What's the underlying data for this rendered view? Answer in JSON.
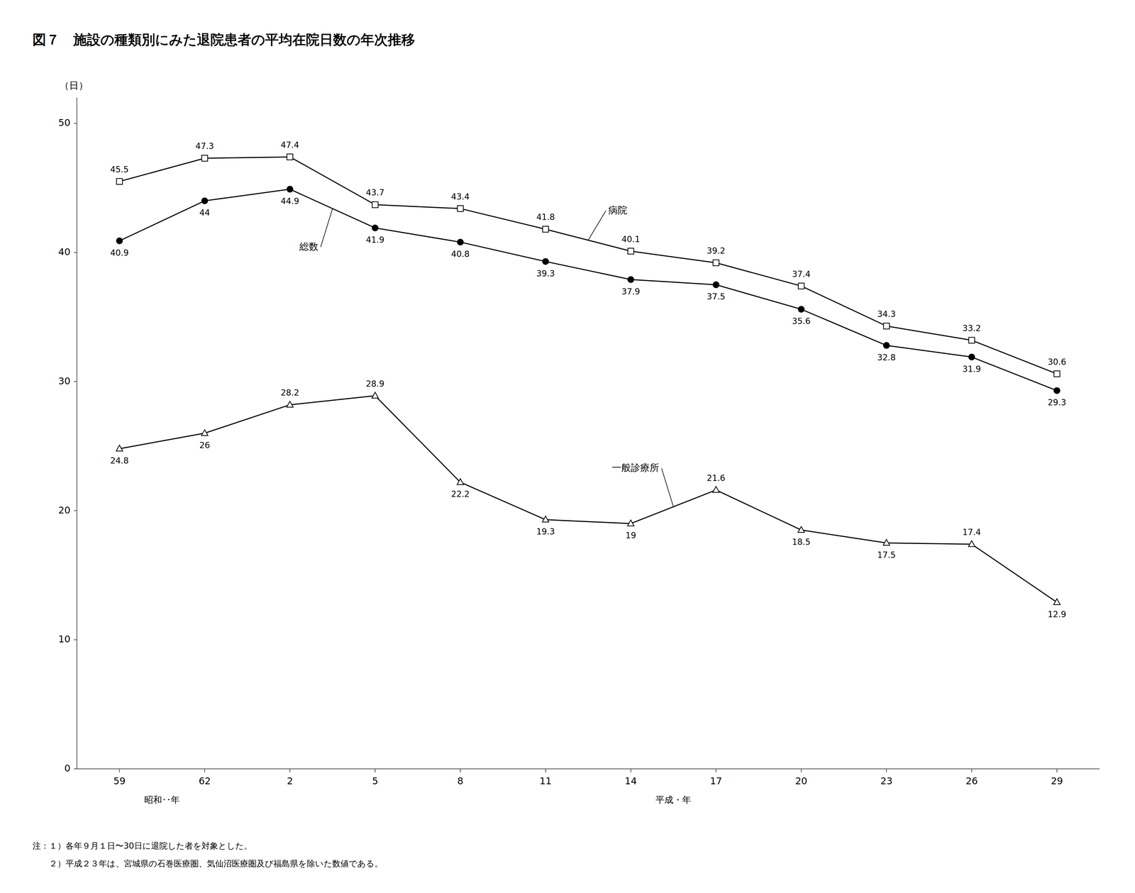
{
  "chart_data": {
    "type": "line",
    "title": "図７　施設の種類別にみた退院患者の平均在院日数の年次推移",
    "ylabel": "（日）",
    "categories": [
      "59",
      "62",
      "2",
      "5",
      "8",
      "11",
      "14",
      "17",
      "20",
      "23",
      "26",
      "29"
    ],
    "x_group_labels": [
      {
        "label": "昭和･･年",
        "from": "59",
        "to": "62"
      },
      {
        "label": "平成・年",
        "from": "2",
        "to": "29"
      }
    ],
    "series": [
      {
        "name": "病院",
        "color": "#000000",
        "marker": "open-square",
        "values": [
          45.5,
          47.3,
          47.4,
          43.7,
          43.4,
          41.8,
          40.1,
          39.2,
          37.4,
          34.3,
          33.2,
          30.6
        ]
      },
      {
        "name": "総数",
        "color": "#000000",
        "marker": "circle",
        "values": [
          40.9,
          44.0,
          44.9,
          41.9,
          40.8,
          39.3,
          37.9,
          37.5,
          35.6,
          32.8,
          31.9,
          29.3
        ]
      },
      {
        "name": "一般診療所",
        "color": "#000000",
        "marker": "open-triangle",
        "values": [
          24.8,
          26.0,
          28.2,
          28.9,
          22.2,
          19.3,
          19.0,
          21.6,
          18.5,
          17.5,
          17.4,
          12.9
        ]
      }
    ],
    "ylim": [
      0,
      52
    ],
    "yticks": [
      0,
      10,
      20,
      30,
      40,
      50
    ],
    "grid": false,
    "data_labels": true,
    "notes": [
      "注：１）各年９月１日〜30日に退院した者を対象とした。",
      "　　２）平成２３年は、宮城県の石巻医療圏、気仙沼医療圏及び福島県を除いた数値である。"
    ]
  }
}
